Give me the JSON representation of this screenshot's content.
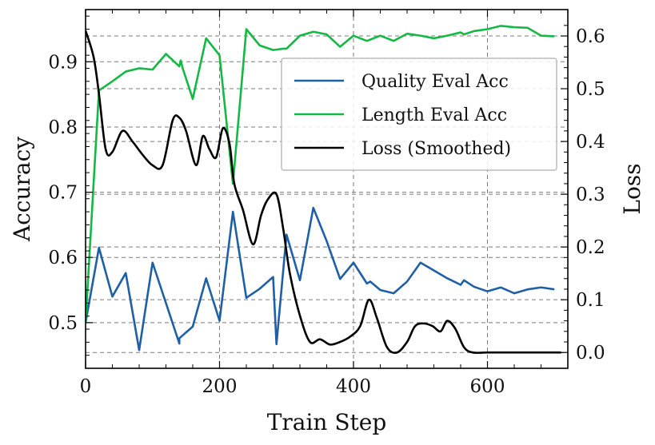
{
  "chart_data": {
    "type": "line",
    "xlabel": "Train Step",
    "ylabel_left": "Accuracy",
    "ylabel_right": "Loss",
    "xlim": [
      0,
      720
    ],
    "ylim_left": [
      0.43,
      0.98
    ],
    "ylim_right": [
      -0.03,
      0.65
    ],
    "x_ticks": [
      0,
      200,
      400,
      600
    ],
    "y_left_ticks": [
      0.5,
      0.6,
      0.7,
      0.8,
      0.9
    ],
    "y_right_ticks": [
      0.0,
      0.1,
      0.2,
      0.3,
      0.4,
      0.5,
      0.6
    ],
    "grid": true,
    "legend_position": "upper-right",
    "series": [
      {
        "name": "Quality Eval Acc",
        "axis": "left",
        "color": "#1f5fa6",
        "x": [
          0,
          20,
          40,
          60,
          80,
          100,
          120,
          140,
          140,
          160,
          180,
          200,
          220,
          240,
          260,
          280,
          285,
          300,
          320,
          340,
          360,
          380,
          400,
          420,
          425,
          440,
          460,
          480,
          500,
          520,
          540,
          560,
          565,
          580,
          600,
          620,
          640,
          660,
          680,
          700
        ],
        "y": [
          0.5,
          0.615,
          0.54,
          0.576,
          0.458,
          0.592,
          0.53,
          0.468,
          0.476,
          0.494,
          0.568,
          0.503,
          0.67,
          0.538,
          0.552,
          0.57,
          0.467,
          0.635,
          0.565,
          0.676,
          0.625,
          0.567,
          0.592,
          0.56,
          0.563,
          0.55,
          0.545,
          0.563,
          0.592,
          0.58,
          0.568,
          0.558,
          0.565,
          0.555,
          0.548,
          0.554,
          0.545,
          0.551,
          0.554,
          0.551
        ]
      },
      {
        "name": "Length Eval Acc",
        "axis": "left",
        "color": "#14b844",
        "x": [
          0,
          20,
          40,
          60,
          80,
          100,
          120,
          140,
          142,
          145,
          160,
          180,
          200,
          220,
          240,
          260,
          280,
          295,
          300,
          320,
          340,
          360,
          380,
          400,
          420,
          440,
          460,
          480,
          500,
          520,
          540,
          560,
          565,
          580,
          600,
          620,
          640,
          660,
          680,
          700
        ],
        "y": [
          0.5,
          0.856,
          0.87,
          0.885,
          0.89,
          0.888,
          0.912,
          0.893,
          0.902,
          0.89,
          0.843,
          0.936,
          0.91,
          0.713,
          0.95,
          0.925,
          0.918,
          0.92,
          0.92,
          0.94,
          0.946,
          0.942,
          0.923,
          0.94,
          0.932,
          0.94,
          0.932,
          0.943,
          0.94,
          0.936,
          0.94,
          0.945,
          0.942,
          0.947,
          0.95,
          0.955,
          0.953,
          0.952,
          0.94,
          0.939
        ]
      },
      {
        "name": "Loss (Smoothed)",
        "axis": "right",
        "color": "#000000",
        "x": [
          0,
          12,
          20,
          30,
          40,
          55,
          70,
          85,
          100,
          115,
          130,
          140,
          150,
          165,
          175,
          185,
          195,
          205,
          215,
          222,
          235,
          250,
          262,
          272,
          285,
          295,
          305,
          320,
          335,
          350,
          365,
          380,
          395,
          410,
          423,
          435,
          450,
          465,
          480,
          492,
          505,
          518,
          530,
          540,
          552,
          565,
          578,
          600,
          620,
          650,
          680,
          710
        ],
        "y": [
          0.61,
          0.56,
          0.49,
          0.385,
          0.38,
          0.42,
          0.4,
          0.375,
          0.355,
          0.355,
          0.44,
          0.445,
          0.42,
          0.355,
          0.41,
          0.385,
          0.37,
          0.425,
          0.395,
          0.32,
          0.27,
          0.205,
          0.26,
          0.29,
          0.3,
          0.235,
          0.15,
          0.07,
          0.02,
          0.025,
          0.015,
          0.02,
          0.03,
          0.05,
          0.1,
          0.065,
          0.01,
          0.0,
          0.02,
          0.05,
          0.055,
          0.05,
          0.04,
          0.06,
          0.045,
          0.01,
          0.0,
          0.0,
          0.0,
          0.0,
          0.0,
          0.0
        ]
      }
    ]
  }
}
